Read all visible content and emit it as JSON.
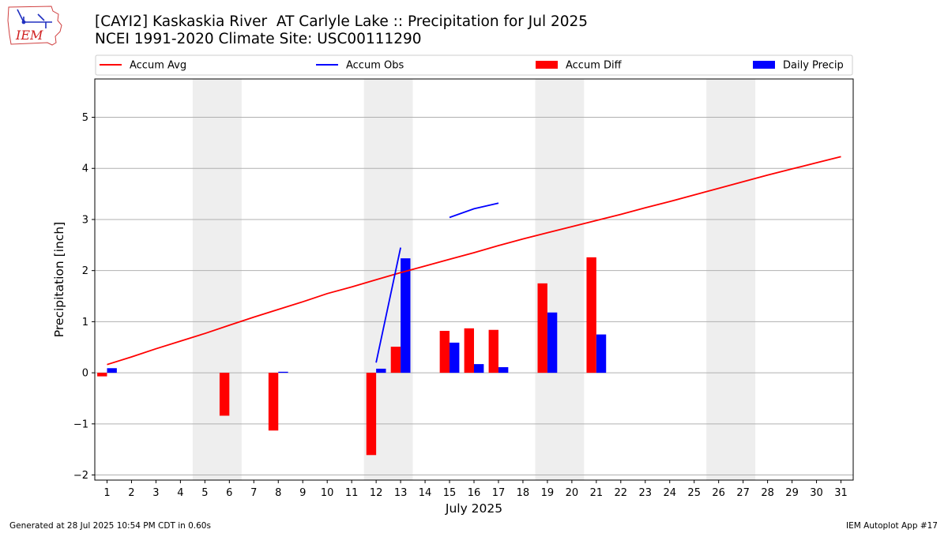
{
  "header": {
    "title_line1": "[CAYI2] Kaskaskia River  AT Carlyle Lake :: Precipitation for Jul 2025",
    "title_line2": "NCEI 1991-2020 Climate Site: USC00111290"
  },
  "logo": {
    "text": "IEM",
    "icon": "iem-iowa-logo"
  },
  "footer": {
    "generated": "Generated at 28 Jul 2025 10:54 PM CDT in 0.60s",
    "app": "IEM Autoplot App #17"
  },
  "colors": {
    "accum_avg": "#ff0000",
    "accum_obs": "#0000ff",
    "accum_diff": "#ff0000",
    "daily_precip": "#0000ff",
    "weekend_shade": "#eeeeee",
    "grid": "#b0b0b0"
  },
  "chart_data": {
    "type": "bar",
    "xlabel": "July 2025",
    "ylabel": "Precipitation [inch]",
    "xlim": [
      0.5,
      31.5
    ],
    "ylim": [
      -2.1,
      5.75
    ],
    "yticks": [
      -2,
      -1,
      0,
      1,
      2,
      3,
      4,
      5
    ],
    "ytick_labels": [
      "−2",
      "−1",
      "0",
      "1",
      "2",
      "3",
      "4",
      "5"
    ],
    "x": [
      1,
      2,
      3,
      4,
      5,
      6,
      7,
      8,
      9,
      10,
      11,
      12,
      13,
      14,
      15,
      16,
      17,
      18,
      19,
      20,
      21,
      22,
      23,
      24,
      25,
      26,
      27,
      28,
      29,
      30,
      31
    ],
    "legend_placement": "top, above plot",
    "grid": "horizontal",
    "weekend_shading": [
      [
        5,
        6
      ],
      [
        12,
        13
      ],
      [
        19,
        20
      ],
      [
        26,
        27
      ]
    ],
    "legend": [
      {
        "label": "Accum Avg",
        "kind": "line",
        "color": "#ff0000"
      },
      {
        "label": "Accum Obs",
        "kind": "line",
        "color": "#0000ff"
      },
      {
        "label": "Accum Diff",
        "kind": "bar",
        "color": "#ff0000"
      },
      {
        "label": "Daily Precip",
        "kind": "bar",
        "color": "#0000ff"
      }
    ],
    "series": [
      {
        "name": "Accum Avg",
        "kind": "line",
        "values": [
          0.16,
          0.31,
          0.47,
          0.62,
          0.77,
          0.93,
          1.09,
          1.24,
          1.39,
          1.55,
          1.68,
          1.82,
          1.96,
          2.09,
          2.22,
          2.35,
          2.49,
          2.62,
          2.74,
          2.86,
          2.98,
          3.1,
          3.23,
          3.35,
          3.48,
          3.61,
          3.74,
          3.87,
          3.99,
          4.11,
          4.23
        ]
      },
      {
        "name": "Accum Obs",
        "kind": "line",
        "values": [
          null,
          null,
          null,
          null,
          null,
          null,
          null,
          null,
          null,
          null,
          null,
          0.2,
          2.45,
          null,
          3.04,
          3.21,
          3.32,
          null,
          null,
          null,
          null,
          null,
          null,
          null,
          null,
          null,
          null,
          null,
          null,
          null,
          null
        ]
      },
      {
        "name": "Accum Diff",
        "kind": "bar",
        "values": [
          -0.07,
          0,
          0,
          0,
          0,
          -0.84,
          0,
          -1.13,
          0,
          0,
          0,
          -1.61,
          0.51,
          0,
          0.82,
          0.87,
          0.84,
          0,
          1.75,
          0,
          2.26,
          0,
          0,
          0,
          0,
          0,
          0,
          0,
          0,
          0,
          0
        ]
      },
      {
        "name": "Daily Precip",
        "kind": "bar",
        "values": [
          0.09,
          0,
          0,
          0,
          0,
          0,
          0,
          0.02,
          0,
          0,
          0,
          0.08,
          2.24,
          0,
          0.59,
          0.17,
          0.11,
          0,
          1.18,
          0,
          0.75,
          0,
          0,
          0,
          0,
          0,
          0,
          0,
          0,
          0,
          0
        ]
      }
    ]
  }
}
